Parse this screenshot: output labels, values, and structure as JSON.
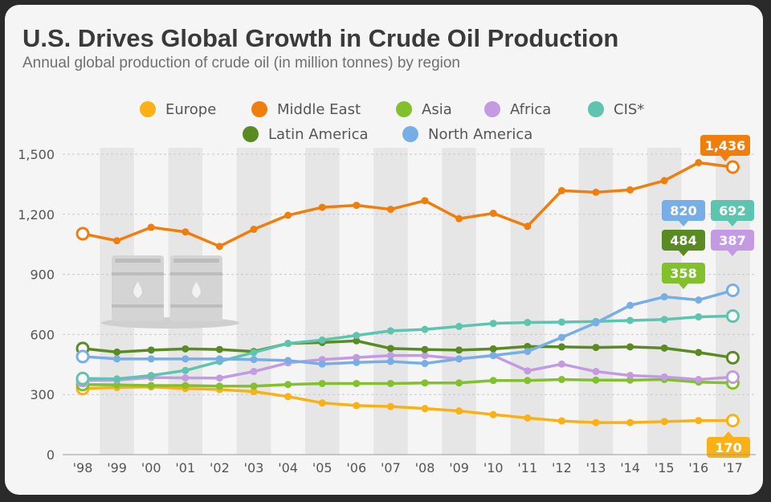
{
  "chart_data": {
    "type": "line",
    "title": "U.S. Drives Global Growth in Crude Oil Production",
    "subtitle": "Annual global production of crude oil (in million tonnes) by region",
    "x": [
      "'98",
      "'99",
      "'00",
      "'01",
      "'02",
      "'03",
      "'04",
      "'05",
      "'06",
      "'07",
      "'08",
      "'09",
      "'10",
      "'11",
      "'12",
      "'13",
      "'14",
      "'15",
      "'16",
      "'17"
    ],
    "ylim": [
      0,
      1500
    ],
    "yticks": [
      "0",
      "300",
      "600",
      "900",
      "1,200",
      "1,500"
    ],
    "grid": true,
    "legend_position": "top",
    "series": [
      {
        "name": "Europe",
        "color": "#f9b115",
        "values": [
          330,
          335,
          338,
          330,
          325,
          315,
          290,
          258,
          245,
          240,
          230,
          218,
          200,
          183,
          168,
          160,
          160,
          165,
          170,
          170
        ],
        "end_label": "170"
      },
      {
        "name": "Middle East",
        "color": "#f07e0d",
        "values": [
          1103,
          1068,
          1135,
          1112,
          1040,
          1125,
          1195,
          1235,
          1245,
          1225,
          1268,
          1178,
          1205,
          1140,
          1318,
          1310,
          1322,
          1368,
          1458,
          1436
        ],
        "end_label": "1,436"
      },
      {
        "name": "Asia",
        "color": "#82c02d",
        "values": [
          350,
          348,
          345,
          345,
          342,
          342,
          350,
          355,
          355,
          355,
          358,
          358,
          370,
          370,
          375,
          372,
          372,
          375,
          362,
          358
        ],
        "end_label": "358"
      },
      {
        "name": "Africa",
        "color": "#c49be3",
        "values": [
          370,
          372,
          385,
          383,
          382,
          415,
          458,
          475,
          485,
          495,
          495,
          478,
          495,
          418,
          452,
          415,
          395,
          388,
          375,
          387
        ],
        "end_label": "387"
      },
      {
        "name": "CIS*",
        "color": "#5dc4b0",
        "values": [
          380,
          378,
          395,
          420,
          465,
          510,
          555,
          572,
          595,
          618,
          625,
          640,
          655,
          660,
          662,
          665,
          670,
          675,
          688,
          692
        ],
        "end_label": "692"
      },
      {
        "name": "Latin America",
        "color": "#5a8a22",
        "values": [
          530,
          512,
          522,
          528,
          525,
          515,
          555,
          560,
          568,
          530,
          525,
          522,
          528,
          540,
          538,
          535,
          538,
          532,
          510,
          484
        ],
        "end_label": "484"
      },
      {
        "name": "North America",
        "color": "#78aee6",
        "values": [
          490,
          478,
          478,
          478,
          478,
          475,
          470,
          452,
          460,
          465,
          455,
          478,
          495,
          515,
          585,
          658,
          745,
          788,
          772,
          820
        ],
        "end_label": "820"
      }
    ]
  }
}
